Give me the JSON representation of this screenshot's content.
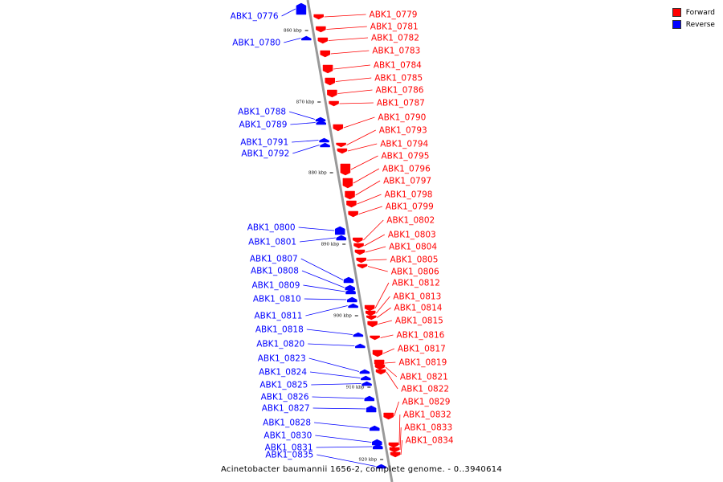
{
  "legend": {
    "forward_label": "Forward",
    "forward_color": "#ff0000",
    "reverse_label": "Reverse",
    "reverse_color": "#0000ff"
  },
  "caption": "Acinetobacter baumannii 1656-2, complete genome. - 0..3940614",
  "backbone_color": "#999999",
  "ticks": [
    "860 kbp",
    "870 kbp",
    "880 kbp",
    "890 kbp",
    "900 kbp",
    "910 kbp",
    "920 kbp"
  ],
  "genes": [
    {
      "id": "ABK1_0776",
      "strand": "reverse"
    },
    {
      "id": "ABK1_0779",
      "strand": "forward"
    },
    {
      "id": "ABK1_0781",
      "strand": "forward"
    },
    {
      "id": "ABK1_0782",
      "strand": "forward"
    },
    {
      "id": "ABK1_0780",
      "strand": "reverse"
    },
    {
      "id": "ABK1_0783",
      "strand": "forward"
    },
    {
      "id": "ABK1_0784",
      "strand": "forward"
    },
    {
      "id": "ABK1_0785",
      "strand": "forward"
    },
    {
      "id": "ABK1_0786",
      "strand": "forward"
    },
    {
      "id": "ABK1_0787",
      "strand": "forward"
    },
    {
      "id": "ABK1_0788",
      "strand": "reverse"
    },
    {
      "id": "ABK1_0790",
      "strand": "forward"
    },
    {
      "id": "ABK1_0789",
      "strand": "reverse"
    },
    {
      "id": "ABK1_0793",
      "strand": "forward"
    },
    {
      "id": "ABK1_0791",
      "strand": "reverse"
    },
    {
      "id": "ABK1_0794",
      "strand": "forward"
    },
    {
      "id": "ABK1_0792",
      "strand": "reverse"
    },
    {
      "id": "ABK1_0795",
      "strand": "forward"
    },
    {
      "id": "ABK1_0796",
      "strand": "forward"
    },
    {
      "id": "ABK1_0797",
      "strand": "forward"
    },
    {
      "id": "ABK1_0798",
      "strand": "forward"
    },
    {
      "id": "ABK1_0799",
      "strand": "forward"
    },
    {
      "id": "ABK1_0802",
      "strand": "forward"
    },
    {
      "id": "ABK1_0800",
      "strand": "reverse"
    },
    {
      "id": "ABK1_0803",
      "strand": "forward"
    },
    {
      "id": "ABK1_0801",
      "strand": "reverse"
    },
    {
      "id": "ABK1_0804",
      "strand": "forward"
    },
    {
      "id": "ABK1_0807",
      "strand": "reverse"
    },
    {
      "id": "ABK1_0805",
      "strand": "forward"
    },
    {
      "id": "ABK1_0808",
      "strand": "reverse"
    },
    {
      "id": "ABK1_0806",
      "strand": "forward"
    },
    {
      "id": "ABK1_0812",
      "strand": "forward"
    },
    {
      "id": "ABK1_0809",
      "strand": "reverse"
    },
    {
      "id": "ABK1_0813",
      "strand": "forward"
    },
    {
      "id": "ABK1_0810",
      "strand": "reverse"
    },
    {
      "id": "ABK1_0814",
      "strand": "forward"
    },
    {
      "id": "ABK1_0811",
      "strand": "reverse"
    },
    {
      "id": "ABK1_0815",
      "strand": "forward"
    },
    {
      "id": "ABK1_0818",
      "strand": "reverse"
    },
    {
      "id": "ABK1_0816",
      "strand": "forward"
    },
    {
      "id": "ABK1_0820",
      "strand": "reverse"
    },
    {
      "id": "ABK1_0817",
      "strand": "forward"
    },
    {
      "id": "ABK1_0823",
      "strand": "reverse"
    },
    {
      "id": "ABK1_0819",
      "strand": "forward"
    },
    {
      "id": "ABK1_0824",
      "strand": "reverse"
    },
    {
      "id": "ABK1_0821",
      "strand": "forward"
    },
    {
      "id": "ABK1_0825",
      "strand": "reverse"
    },
    {
      "id": "ABK1_0822",
      "strand": "forward"
    },
    {
      "id": "ABK1_0826",
      "strand": "reverse"
    },
    {
      "id": "ABK1_0829",
      "strand": "forward"
    },
    {
      "id": "ABK1_0827",
      "strand": "reverse"
    },
    {
      "id": "ABK1_0832",
      "strand": "forward"
    },
    {
      "id": "ABK1_0828",
      "strand": "reverse"
    },
    {
      "id": "ABK1_0833",
      "strand": "forward"
    },
    {
      "id": "ABK1_0830",
      "strand": "reverse"
    },
    {
      "id": "ABK1_0834",
      "strand": "forward"
    },
    {
      "id": "ABK1_0831",
      "strand": "reverse"
    },
    {
      "id": "ABK1_0835",
      "strand": "reverse"
    }
  ]
}
